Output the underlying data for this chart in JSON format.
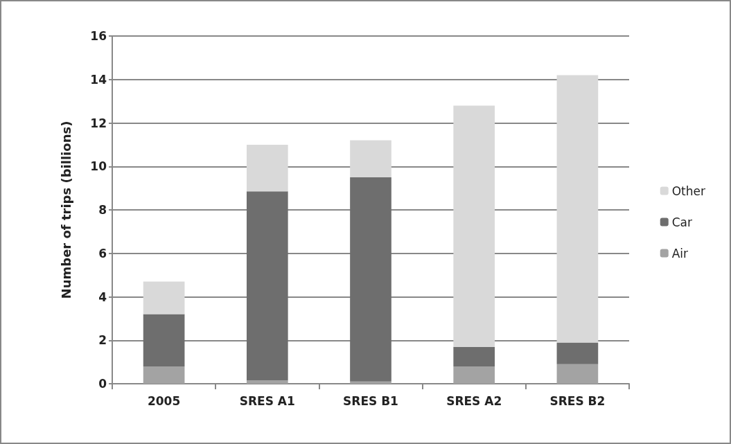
{
  "chart_data": {
    "type": "bar",
    "ylabel": "Number of trips (billions)",
    "categories": [
      "2005",
      "SRES A1",
      "SRES B1",
      "SRES A2",
      "SRES B2"
    ],
    "stacked": true,
    "series": [
      {
        "name": "Air",
        "color": "#a3a3a3",
        "values": [
          0.8,
          0.15,
          0.1,
          0.8,
          0.9
        ]
      },
      {
        "name": "Car",
        "color": "#6e6e6e",
        "values": [
          2.4,
          8.7,
          9.4,
          0.9,
          1.0
        ]
      },
      {
        "name": "Other",
        "color": "#d9d9d9",
        "values": [
          1.5,
          2.15,
          1.7,
          11.1,
          12.3
        ]
      }
    ],
    "ylim": [
      0,
      16
    ],
    "yticks": [
      0,
      2,
      4,
      6,
      8,
      10,
      12,
      14,
      16
    ],
    "grid": "y",
    "legend": "right"
  }
}
